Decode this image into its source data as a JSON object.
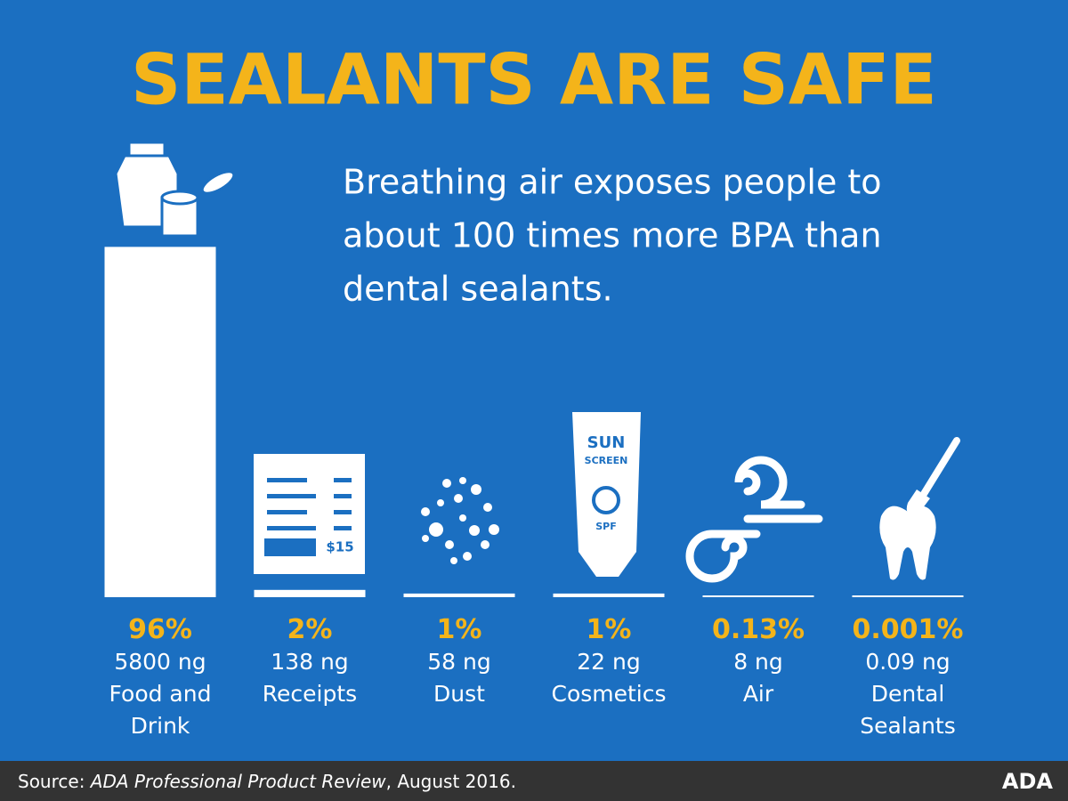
{
  "chart_data": {
    "type": "bar",
    "title": "SEALANTS ARE SAFE",
    "subtitle": [
      "Breathing air exposes people to",
      "about 100 times more BPA than",
      "dental sealants."
    ],
    "categories": [
      "Food and Drink",
      "Receipts",
      "Dust",
      "Cosmetics",
      "Air",
      "Dental Sealants"
    ],
    "values": [
      96,
      2,
      1,
      1,
      0.13,
      0.001
    ],
    "value_labels": [
      "96%",
      "2%",
      "1%",
      "1%",
      "0.13%",
      "0.001%"
    ],
    "amount_labels": [
      "5800 ng",
      "138 ng",
      "58 ng",
      "22 ng",
      "8 ng",
      "0.09 ng"
    ],
    "color": "#ffffff",
    "label_color": "#f4b41a",
    "icon_texts": {
      "receipt": "$15",
      "sunscreen": [
        "SUN",
        "SCREEN",
        "SPF"
      ]
    },
    "source": {
      "prefix": "Source: ",
      "title": "ADA Professional Product Review",
      "suffix": ", August 2016."
    },
    "logo": "ADA"
  }
}
